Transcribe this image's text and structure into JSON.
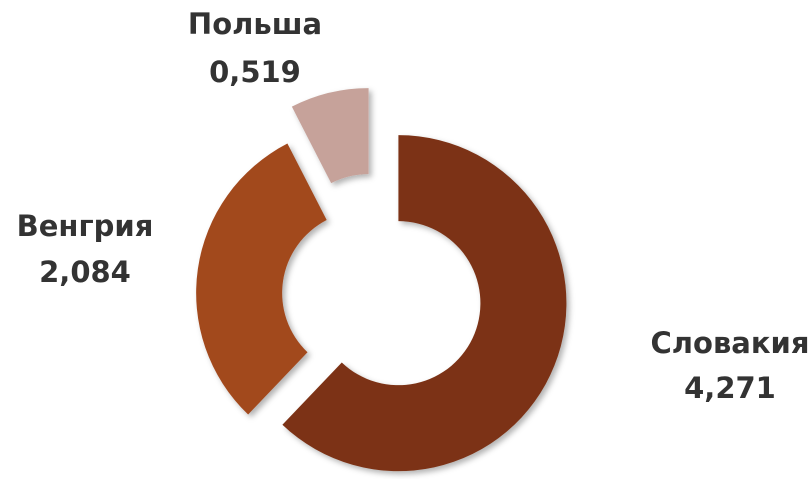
{
  "chart_data": {
    "type": "donut",
    "categories": [
      "Словакия",
      "Венгрия",
      "Польша"
    ],
    "values": [
      4.271,
      2.084,
      0.519
    ],
    "value_labels": [
      "4,271",
      "2,084",
      "0,519"
    ],
    "colors": [
      "#7b3315",
      "#a2481f",
      "#c6a29a"
    ]
  }
}
